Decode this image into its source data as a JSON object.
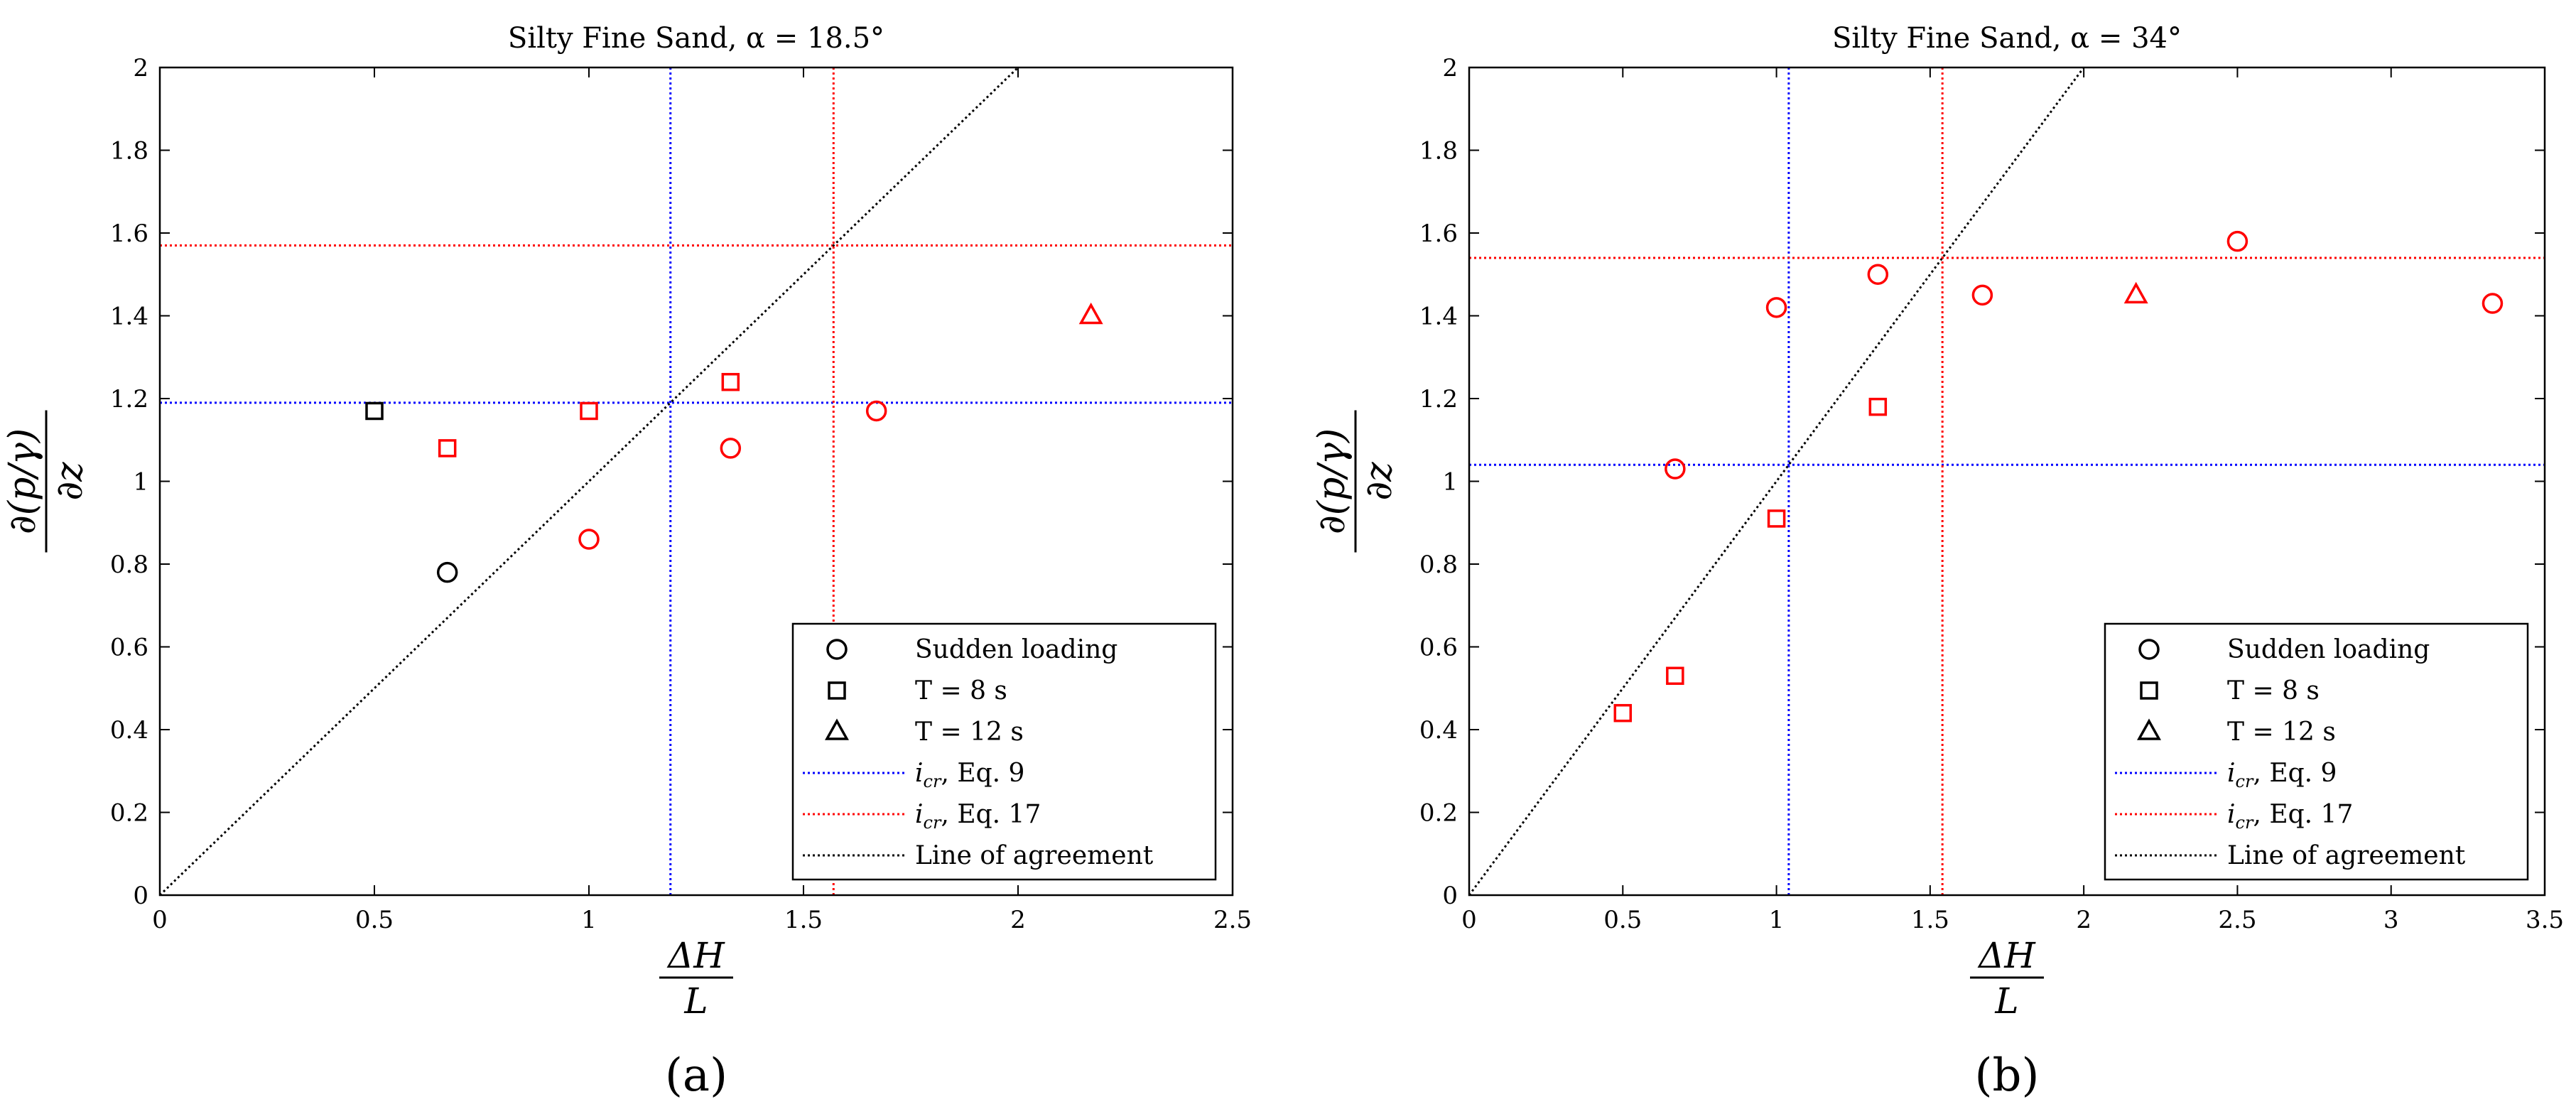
{
  "chart_data": [
    {
      "panel_label": "(a)",
      "type": "scatter",
      "title": "Silty Fine Sand, α = 18.5°",
      "xlabel_numerator": "ΔH",
      "xlabel_denominator": "L",
      "ylabel_numerator": "∂(p/γ)",
      "ylabel_denominator": "∂z",
      "xlim": [
        0,
        2.5
      ],
      "ylim": [
        0,
        2
      ],
      "xticks": [
        0,
        0.5,
        1,
        1.5,
        2,
        2.5
      ],
      "xtick_labels": [
        "0",
        "0.5",
        "1",
        "1.5",
        "2",
        "2.5"
      ],
      "yticks": [
        0,
        0.2,
        0.4,
        0.6,
        0.8,
        1,
        1.2,
        1.4,
        1.6,
        1.8,
        2
      ],
      "ytick_labels": [
        "0",
        "0.2",
        "0.4",
        "0.6",
        "0.8",
        "1",
        "1.2",
        "1.4",
        "1.6",
        "1.8",
        "2"
      ],
      "grid": false,
      "legend_position": "bottom-right",
      "points": [
        {
          "x": 0.67,
          "y": 0.78,
          "marker": "circle",
          "color": "#000000"
        },
        {
          "x": 0.5,
          "y": 1.17,
          "marker": "square",
          "color": "#000000"
        },
        {
          "x": 0.67,
          "y": 1.08,
          "marker": "square",
          "color": "#ff0000"
        },
        {
          "x": 1.0,
          "y": 1.17,
          "marker": "square",
          "color": "#ff0000"
        },
        {
          "x": 1.33,
          "y": 1.24,
          "marker": "square",
          "color": "#ff0000"
        },
        {
          "x": 1.0,
          "y": 0.86,
          "marker": "circle",
          "color": "#ff0000"
        },
        {
          "x": 1.33,
          "y": 1.08,
          "marker": "circle",
          "color": "#ff0000"
        },
        {
          "x": 1.67,
          "y": 1.17,
          "marker": "circle",
          "color": "#ff0000"
        },
        {
          "x": 2.17,
          "y": 1.4,
          "marker": "triangle",
          "color": "#ff0000"
        }
      ],
      "icr_eq9": 1.19,
      "icr_eq17": 1.57,
      "agreement_line": [
        [
          0,
          0
        ],
        [
          2,
          2
        ]
      ]
    },
    {
      "panel_label": "(b)",
      "type": "scatter",
      "title": "Silty Fine Sand, α = 34°",
      "xlabel_numerator": "ΔH",
      "xlabel_denominator": "L",
      "ylabel_numerator": "∂(p/γ)",
      "ylabel_denominator": "∂z",
      "xlim": [
        0,
        3.5
      ],
      "ylim": [
        0,
        2
      ],
      "xticks": [
        0,
        0.5,
        1,
        1.5,
        2,
        2.5,
        3,
        3.5
      ],
      "xtick_labels": [
        "0",
        "0.5",
        "1",
        "1.5",
        "2",
        "2.5",
        "3",
        "3.5"
      ],
      "yticks": [
        0,
        0.2,
        0.4,
        0.6,
        0.8,
        1,
        1.2,
        1.4,
        1.6,
        1.8,
        2
      ],
      "ytick_labels": [
        "0",
        "0.2",
        "0.4",
        "0.6",
        "0.8",
        "1",
        "1.2",
        "1.4",
        "1.6",
        "1.8",
        "2"
      ],
      "grid": false,
      "legend_position": "bottom-right",
      "points": [
        {
          "x": 0.67,
          "y": 1.03,
          "marker": "circle",
          "color": "#ff0000"
        },
        {
          "x": 1.0,
          "y": 1.42,
          "marker": "circle",
          "color": "#ff0000"
        },
        {
          "x": 1.33,
          "y": 1.5,
          "marker": "circle",
          "color": "#ff0000"
        },
        {
          "x": 1.67,
          "y": 1.45,
          "marker": "circle",
          "color": "#ff0000"
        },
        {
          "x": 2.5,
          "y": 1.58,
          "marker": "circle",
          "color": "#ff0000"
        },
        {
          "x": 3.33,
          "y": 1.43,
          "marker": "circle",
          "color": "#ff0000"
        },
        {
          "x": 0.5,
          "y": 0.44,
          "marker": "square",
          "color": "#ff0000"
        },
        {
          "x": 0.67,
          "y": 0.53,
          "marker": "square",
          "color": "#ff0000"
        },
        {
          "x": 1.0,
          "y": 0.91,
          "marker": "square",
          "color": "#ff0000"
        },
        {
          "x": 1.33,
          "y": 1.18,
          "marker": "square",
          "color": "#ff0000"
        },
        {
          "x": 2.17,
          "y": 1.45,
          "marker": "triangle",
          "color": "#ff0000"
        }
      ],
      "icr_eq9": 1.04,
      "icr_eq17": 1.54,
      "agreement_line": [
        [
          0,
          0
        ],
        [
          2,
          2
        ]
      ]
    }
  ],
  "legend": [
    {
      "marker": "circle",
      "label": "Sudden loading"
    },
    {
      "marker": "square",
      "label": "T = 8 s"
    },
    {
      "marker": "triangle",
      "label": "T = 12 s"
    },
    {
      "marker": "line",
      "color": "#0000ff",
      "label_main": "i",
      "label_sub": "cr",
      "label_rest": ", Eq. 9"
    },
    {
      "marker": "line",
      "color": "#ff0000",
      "label_main": "i",
      "label_sub": "cr",
      "label_rest": ", Eq. 17"
    },
    {
      "marker": "line",
      "color": "#000000",
      "label": "Line of agreement"
    }
  ],
  "colors": {
    "eq9": "#0000ff",
    "eq17": "#ff0000",
    "agreement": "#000000",
    "axis": "#000000"
  }
}
